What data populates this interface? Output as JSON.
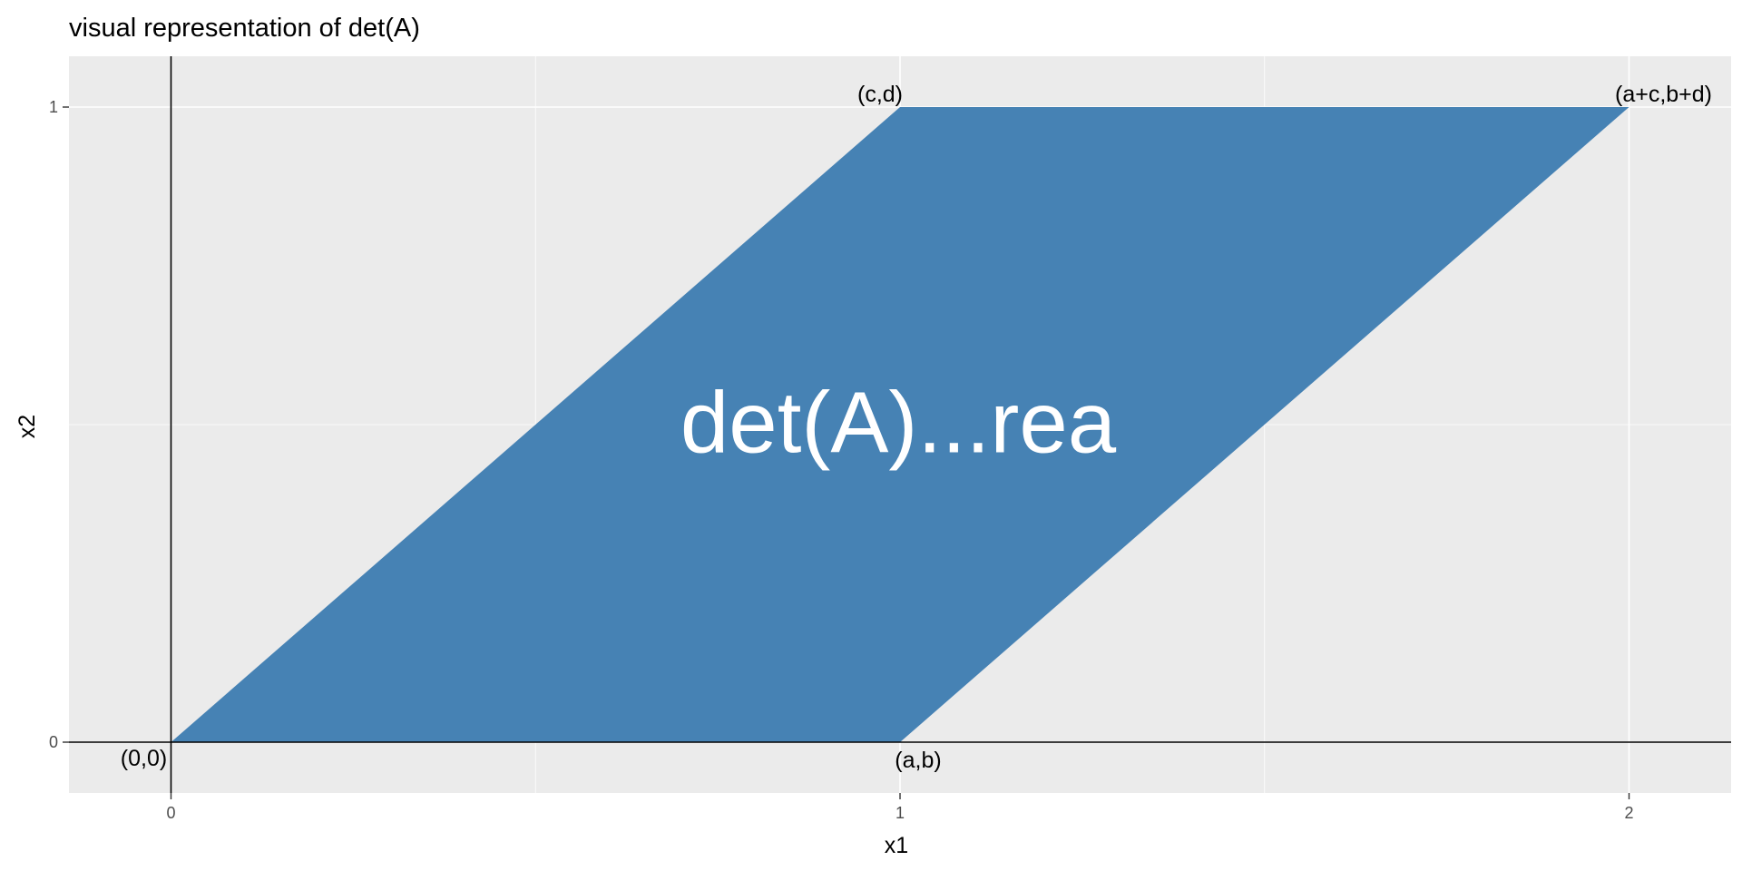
{
  "chart_data": {
    "type": "area",
    "title": "visual representation of det(A)",
    "xlabel": "x1",
    "ylabel": "x2",
    "xlim": [
      -0.14,
      2.14
    ],
    "ylim": [
      -0.08,
      1.08
    ],
    "x_ticks": [
      0,
      1,
      2
    ],
    "y_ticks": [
      0,
      1
    ],
    "x_tick_labels": [
      "0",
      "1",
      "2"
    ],
    "y_tick_labels": [
      "0",
      "1"
    ],
    "grid": true,
    "polygon": [
      {
        "x": 0,
        "y": 0
      },
      {
        "x": 1,
        "y": 0
      },
      {
        "x": 2,
        "y": 1
      },
      {
        "x": 1,
        "y": 1
      }
    ],
    "fill_color": "#4682B4",
    "panel_color": "#EBEBEB",
    "axes_lines": [
      {
        "orientation": "vertical",
        "x": 0
      },
      {
        "orientation": "horizontal",
        "y": 0
      }
    ],
    "point_labels": [
      {
        "text": "(0,0)",
        "x": 0,
        "y": 0
      },
      {
        "text": "(a,b)",
        "x": 1,
        "y": 0
      },
      {
        "text": "(c,d)",
        "x": 1,
        "y": 1
      },
      {
        "text": "(a+c,b+d)",
        "x": 2,
        "y": 1
      }
    ],
    "center_label": {
      "text": "det(A)...rea",
      "x": 1,
      "y": 0.5,
      "color": "#FFFFFF"
    }
  }
}
